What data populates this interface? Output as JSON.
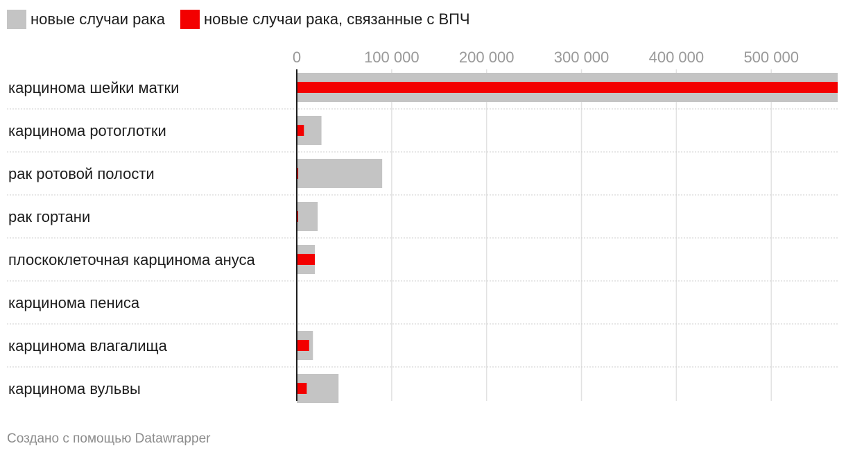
{
  "legend": {
    "total_label": "новые случаи рака",
    "hpv_label": "новые случаи рака, связанные с ВПЧ"
  },
  "colors": {
    "total": "#c4c4c4",
    "hpv": "#f30000",
    "gridline": "#e2e2e2",
    "separator": "#cfcfcf",
    "axis": "#1d1d1d"
  },
  "chart_data": {
    "type": "bar",
    "orientation": "horizontal",
    "categories": [
      "карцинома шейки матки",
      "карцинома ротоглотки",
      "рак ротовой полости",
      "рак гортани",
      "плоскоклеточная карцинома ануса",
      "карцинома пениса",
      "карцинома влагалища",
      "карцинома вульвы"
    ],
    "series": [
      {
        "name": "новые случаи рака",
        "values": [
          570000,
          26000,
          90000,
          22000,
          19000,
          0,
          17000,
          44000
        ]
      },
      {
        "name": "новые случаи рака, связанные с ВПЧ",
        "values": [
          570000,
          7500,
          1500,
          1200,
          19000,
          0,
          13000,
          10500
        ]
      }
    ],
    "xlim": [
      0,
      570000
    ],
    "xticks": [
      0,
      100000,
      200000,
      300000,
      400000,
      500000
    ],
    "xtick_labels": [
      "0",
      "100 000",
      "200 000",
      "300 000",
      "400 000",
      "500 000"
    ],
    "xaxis_position": "top",
    "grid": true,
    "legend_position": "top-left"
  },
  "footer": {
    "credit": "Создано с помощью Datawrapper"
  }
}
